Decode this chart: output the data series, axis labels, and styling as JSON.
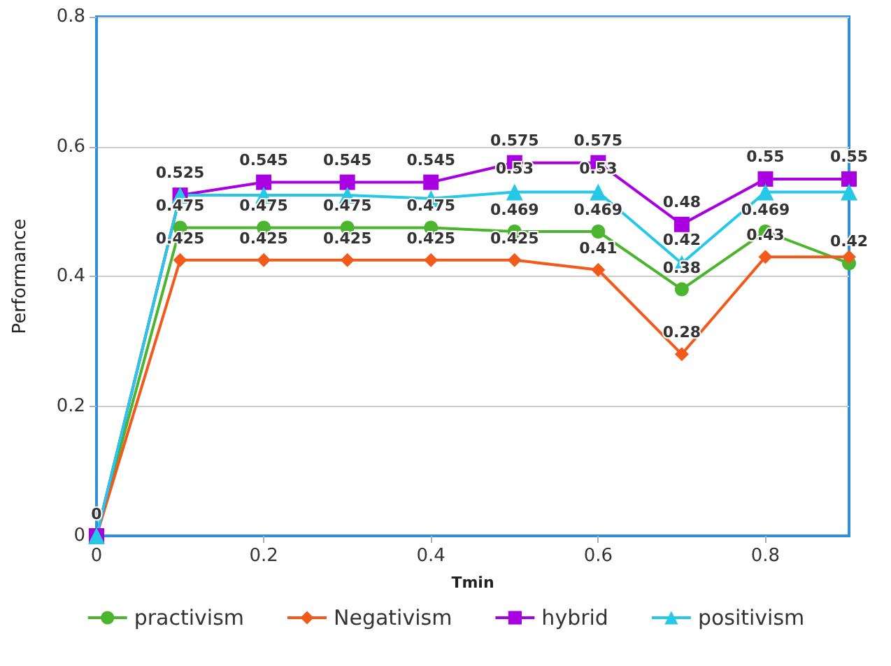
{
  "chart_data": {
    "type": "line",
    "xlabel": "Tmin",
    "ylabel": "Performance",
    "x": [
      0,
      0.1,
      0.2,
      0.3,
      0.4,
      0.5,
      0.6,
      0.7,
      0.8,
      0.9
    ],
    "xlim": [
      0,
      0.9
    ],
    "xticks": [
      0,
      0.2,
      0.4,
      0.6,
      0.8
    ],
    "ylim": [
      0,
      0.8
    ],
    "yticks": [
      0,
      0.2,
      0.4,
      0.6,
      0.8
    ],
    "grid": "y",
    "legend": "bottom",
    "series": [
      {
        "name": "practivism",
        "color": "#4cb52f",
        "marker": "circle",
        "values": [
          0,
          0.475,
          0.475,
          0.475,
          0.475,
          0.469,
          0.469,
          0.38,
          0.469,
          0.42
        ],
        "value_labels": [
          "0",
          "0.475",
          "0.475",
          "0.475",
          "0.475",
          "0.469",
          "0.469",
          "0.38",
          "0.469",
          "0.42"
        ]
      },
      {
        "name": "Negativism",
        "color": "#f25a1c",
        "marker": "diamond",
        "values": [
          0,
          0.425,
          0.425,
          0.425,
          0.425,
          0.425,
          0.41,
          0.28,
          0.43,
          0.43
        ],
        "value_labels": [
          null,
          "0.425",
          "0.425",
          "0.425",
          "0.425",
          "0.425",
          "0.41",
          "0.28",
          "0.43",
          null
        ]
      },
      {
        "name": "hybrid",
        "color": "#a800e0",
        "marker": "square",
        "values": [
          0,
          0.525,
          0.545,
          0.545,
          0.545,
          0.575,
          0.575,
          0.48,
          0.55,
          0.55
        ],
        "value_labels": [
          null,
          "0.525",
          "0.545",
          "0.545",
          "0.545",
          "0.575",
          "0.575",
          "0.48",
          "0.55",
          "0.55"
        ]
      },
      {
        "name": "positivism",
        "color": "#25c8e6",
        "marker": "triangle",
        "values": [
          0,
          0.525,
          0.525,
          0.525,
          0.52,
          0.53,
          0.53,
          0.42,
          0.53,
          0.53
        ],
        "value_labels": [
          null,
          null,
          null,
          null,
          null,
          "0.53",
          "0.53",
          "0.42",
          null,
          null
        ]
      }
    ]
  }
}
